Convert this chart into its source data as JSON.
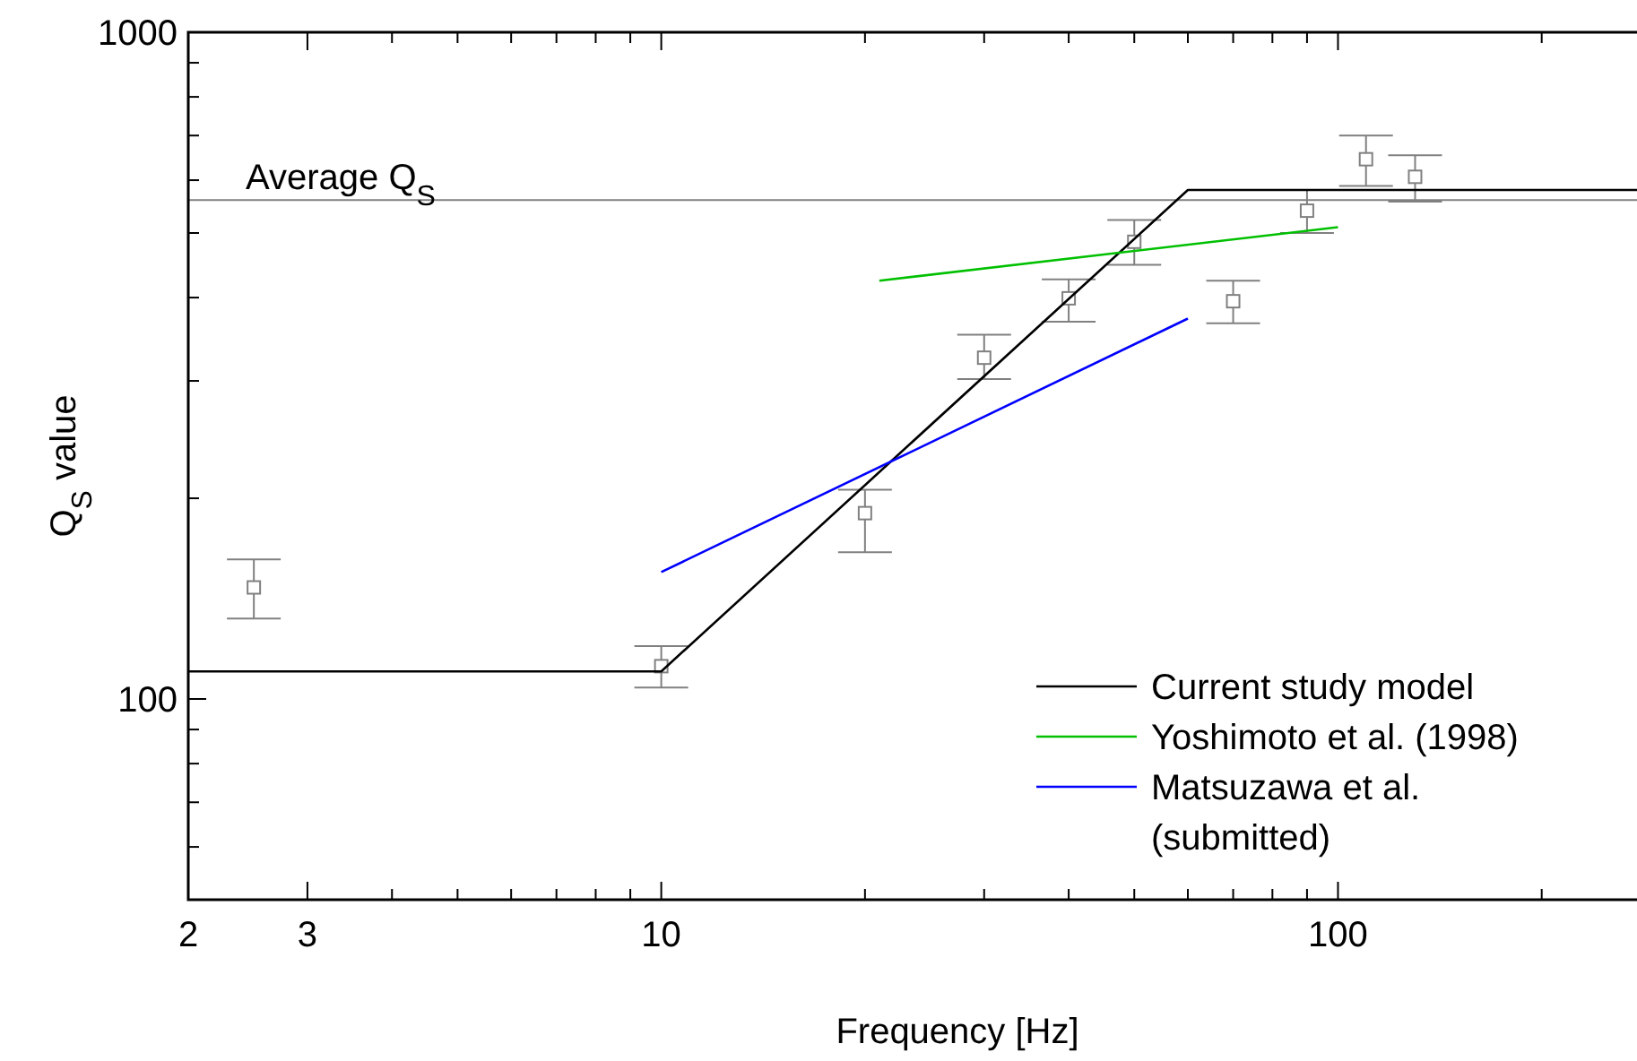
{
  "chart_data": {
    "type": "scatter",
    "xlabel": "Frequency [Hz]",
    "ylabel": "Q$_{S}$ value",
    "log": "xy",
    "xlim": [
      2,
      280
    ],
    "ylim": [
      50,
      1000
    ],
    "xticks": [
      2,
      3,
      {
        "value": 4,
        "label": null
      },
      {
        "value": 5,
        "label": null
      },
      {
        "value": 6,
        "label": null
      },
      {
        "value": 7,
        "label": null
      },
      {
        "value": 8,
        "label": null
      },
      {
        "value": 9,
        "label": null
      },
      10,
      {
        "value": 20,
        "label": null
      },
      {
        "value": 30,
        "label": null
      },
      {
        "value": 40,
        "label": null
      },
      {
        "value": 50,
        "label": null
      },
      {
        "value": 60,
        "label": null
      },
      {
        "value": 70,
        "label": null
      },
      {
        "value": 80,
        "label": null
      },
      {
        "value": 90,
        "label": null
      },
      100,
      {
        "value": 200,
        "label": null
      }
    ],
    "yticks": [
      {
        "value": 50,
        "label": null
      },
      {
        "value": 60,
        "label": null
      },
      {
        "value": 70,
        "label": null
      },
      {
        "value": 80,
        "label": null
      },
      {
        "value": 90,
        "label": null
      },
      100,
      {
        "value": 200,
        "label": null
      },
      {
        "value": 300,
        "label": null
      },
      {
        "value": 400,
        "label": null
      },
      {
        "value": 500,
        "label": null
      },
      {
        "value": 600,
        "label": null
      },
      {
        "value": 700,
        "label": null
      },
      {
        "value": 800,
        "label": null
      },
      {
        "value": 900,
        "label": null
      },
      1000
    ],
    "grid": false,
    "legend": "bottom right",
    "ref_lines": [
      {
        "axis": "y",
        "value": 560,
        "label": "Average Q$_{S}$",
        "color": "#808080"
      }
    ],
    "series": [
      {
        "marker": "square",
        "color": "#808080",
        "x": [
          2.5,
          10,
          20,
          30,
          40,
          50,
          70,
          90,
          110,
          130
        ],
        "values": [
          147,
          112,
          190,
          325,
          399,
          485,
          395,
          540,
          645,
          607
        ],
        "errors": [
          [
            132,
            162
          ],
          [
            104,
            120
          ],
          [
            166,
            206
          ],
          [
            302,
            352
          ],
          [
            368,
            426
          ],
          [
            448,
            523
          ],
          [
            366,
            424
          ],
          [
            500,
            580
          ],
          [
            588,
            700
          ],
          [
            557,
            654
          ]
        ]
      },
      {
        "type": "line",
        "name": "Current study model",
        "color": "#000000",
        "x": [
          2,
          10,
          60,
          280
        ],
        "values": [
          110,
          110,
          580,
          580
        ]
      },
      {
        "type": "line",
        "name": "Yoshimoto et al. (1998)",
        "color": "#00c000",
        "x": [
          21,
          100
        ],
        "values": [
          424,
          510
        ]
      },
      {
        "type": "line",
        "name": "Matsuzawa et al. (submitted)",
        "color": "#0000ff",
        "x": [
          10,
          60
        ],
        "values": [
          155,
          372
        ]
      }
    ]
  }
}
